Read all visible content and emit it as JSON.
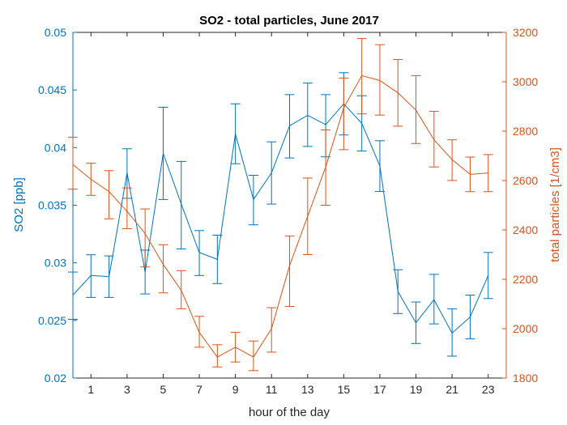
{
  "chart_data": {
    "type": "line",
    "title": "SO2 - total particles, June 2017",
    "xlabel": "hour of the day",
    "ylabel_left": "SO2 [ppb]",
    "ylabel_right": "total particles [1/cm3]",
    "xlim": [
      0,
      24
    ],
    "ylim_left": [
      0.02,
      0.05
    ],
    "ylim_right": [
      1800,
      3200
    ],
    "xticks": [
      1,
      3,
      5,
      7,
      9,
      11,
      13,
      15,
      17,
      19,
      21,
      23
    ],
    "yticks_left": [
      0.02,
      0.025,
      0.03,
      0.035,
      0.04,
      0.045,
      0.05
    ],
    "ytick_labels_left": [
      "0.02",
      "0.025",
      "0.03",
      "0.035",
      "0.04",
      "0.045",
      "0.05"
    ],
    "yticks_right": [
      1800,
      2000,
      2200,
      2400,
      2600,
      2800,
      3000,
      3200
    ],
    "ytick_labels_right": [
      "1800",
      "2000",
      "2200",
      "2400",
      "2600",
      "2800",
      "3000",
      "3200"
    ],
    "grid": false,
    "colors": {
      "left": "#0072BD",
      "right": "#D95319"
    },
    "x": [
      0,
      1,
      2,
      3,
      4,
      5,
      6,
      7,
      8,
      9,
      10,
      11,
      12,
      13,
      14,
      15,
      16,
      17,
      18,
      19,
      20,
      21,
      22,
      23
    ],
    "series": [
      {
        "axis": "left",
        "values": [
          0.0272,
          0.0289,
          0.0288,
          0.0378,
          0.0292,
          0.0395,
          0.0351,
          0.0309,
          0.0303,
          0.0412,
          0.0355,
          0.0378,
          0.0419,
          0.0428,
          0.042,
          0.0438,
          0.0421,
          0.0384,
          0.0275,
          0.0248,
          0.0268,
          0.0239,
          0.0253,
          0.0289
        ],
        "err_low": [
          0.0251,
          0.027,
          0.027,
          0.0356,
          0.0273,
          0.0355,
          0.0312,
          0.0289,
          0.0282,
          0.0386,
          0.0333,
          0.0351,
          0.0391,
          0.0401,
          0.0392,
          0.0411,
          0.0397,
          0.0362,
          0.0256,
          0.023,
          0.0247,
          0.0219,
          0.0234,
          0.0269
        ],
        "err_high": [
          0.0292,
          0.0307,
          0.0306,
          0.0399,
          0.0311,
          0.0435,
          0.0388,
          0.0328,
          0.0324,
          0.0438,
          0.0376,
          0.0405,
          0.0446,
          0.0456,
          0.0446,
          0.0465,
          0.0445,
          0.0406,
          0.0294,
          0.0266,
          0.029,
          0.026,
          0.0272,
          0.0309
        ]
      },
      {
        "axis": "right",
        "values": [
          2665,
          2605,
          2555,
          2475,
          2385,
          2260,
          2155,
          1985,
          1885,
          1925,
          1885,
          2000,
          2255,
          2455,
          2655,
          2895,
          3025,
          3005,
          2955,
          2885,
          2765,
          2685,
          2625,
          2630
        ],
        "err_low": [
          2565,
          2540,
          2445,
          2405,
          2250,
          2145,
          2080,
          1925,
          1845,
          1865,
          1830,
          1905,
          2090,
          2300,
          2500,
          2725,
          2870,
          2865,
          2820,
          2750,
          2655,
          2600,
          2555,
          2555
        ],
        "err_high": [
          2775,
          2670,
          2640,
          2570,
          2485,
          2340,
          2235,
          2050,
          1935,
          1985,
          1950,
          2085,
          2375,
          2610,
          2805,
          3015,
          3175,
          3150,
          3090,
          3025,
          2880,
          2765,
          2695,
          2705
        ]
      }
    ]
  }
}
